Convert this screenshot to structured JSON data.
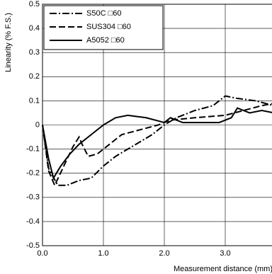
{
  "chart_data": {
    "type": "line",
    "x_label": "Measurement distance (mm)",
    "y_label": "Linearity (% F.S.)",
    "xlim": [
      0,
      4
    ],
    "ylim": [
      -0.5,
      0.5
    ],
    "xticks": [
      {
        "value": 0,
        "label": "0.0"
      },
      {
        "value": 1,
        "label": "1.0"
      },
      {
        "value": 2,
        "label": "2.0"
      },
      {
        "value": 3,
        "label": "3.0"
      }
    ],
    "yticks": [
      0.5,
      0.4,
      0.3,
      0.2,
      0.1,
      0,
      -0.1,
      -0.2,
      -0.3,
      -0.4,
      -0.5
    ],
    "grid": true,
    "legend": "upper left",
    "series": [
      {
        "name": "S50C □60",
        "color": "#000000",
        "line_style": "dashdot",
        "x": [
          0,
          0.1,
          0.25,
          0.4,
          0.6,
          0.8,
          1.0,
          1.2,
          1.4,
          1.6,
          1.8,
          2.0,
          2.2,
          2.5,
          2.8,
          3.0,
          3.2,
          3.5,
          3.8
        ],
        "values": [
          0,
          -0.18,
          -0.25,
          -0.25,
          -0.23,
          -0.22,
          -0.17,
          -0.13,
          -0.1,
          -0.07,
          -0.04,
          0,
          0.03,
          0.06,
          0.08,
          0.12,
          0.11,
          0.1,
          0.08
        ]
      },
      {
        "name": "SUS304 □60",
        "color": "#000000",
        "line_style": "dashed",
        "x": [
          0,
          0.1,
          0.2,
          0.35,
          0.5,
          0.6,
          0.65,
          0.75,
          0.9,
          1.1,
          1.3,
          1.6,
          1.9,
          2.1,
          2.5,
          3.0,
          3.3,
          3.6,
          3.8
        ],
        "values": [
          0,
          -0.19,
          -0.25,
          -0.17,
          -0.09,
          -0.05,
          -0.08,
          -0.13,
          -0.12,
          -0.08,
          -0.04,
          -0.02,
          0,
          0.02,
          0.03,
          0.04,
          0.06,
          0.08,
          0.09
        ]
      },
      {
        "name": "A5052 □60",
        "color": "#000000",
        "line_style": "solid",
        "x": [
          0,
          0.1,
          0.18,
          0.3,
          0.45,
          0.6,
          0.8,
          1.0,
          1.2,
          1.4,
          1.7,
          2.0,
          2.1,
          2.3,
          2.9,
          3.1,
          3.2,
          3.4,
          3.6,
          3.8
        ],
        "values": [
          0,
          -0.14,
          -0.22,
          -0.17,
          -0.12,
          -0.08,
          -0.04,
          0,
          0.03,
          0.04,
          0.03,
          0.01,
          0.03,
          0.01,
          0.01,
          0.03,
          0.07,
          0.05,
          0.06,
          0.05
        ]
      }
    ]
  }
}
